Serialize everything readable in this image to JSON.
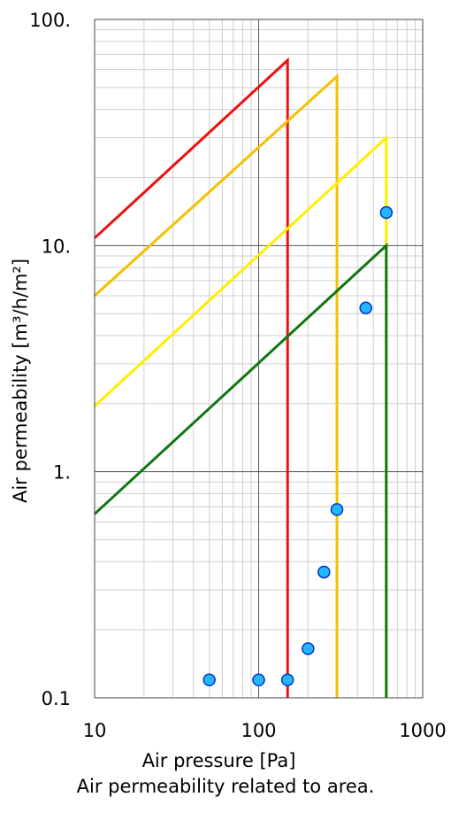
{
  "chart_data": {
    "type": "line",
    "xscale": "log",
    "yscale": "log",
    "xlim": [
      10,
      1000
    ],
    "ylim": [
      0.1,
      100
    ],
    "xlabel": "Air pressure [Pa]",
    "ylabel": "Air permeability [m³/h/m²]",
    "x_ticks": [
      {
        "value": 10,
        "label": "10"
      },
      {
        "value": 100,
        "label": "100"
      },
      {
        "value": 1000,
        "label": "1000"
      }
    ],
    "y_ticks": [
      {
        "value": 0.1,
        "label": "0.1"
      },
      {
        "value": 1,
        "label": "1."
      },
      {
        "value": 10,
        "label": "10."
      },
      {
        "value": 100,
        "label": "100."
      }
    ],
    "grid": true,
    "series": [
      {
        "color": "#ee1111",
        "x": [
          10,
          150,
          150
        ],
        "y": [
          10.8,
          66,
          0.1
        ]
      },
      {
        "color": "#f5c000",
        "x": [
          10,
          300,
          300
        ],
        "y": [
          6,
          56,
          0.1
        ]
      },
      {
        "color": "#ffee00",
        "x": [
          10,
          600,
          600
        ],
        "y": [
          1.95,
          30,
          0.1
        ]
      },
      {
        "color": "#117711",
        "x": [
          10,
          600,
          600
        ],
        "y": [
          0.65,
          10,
          0.1
        ]
      }
    ],
    "points": {
      "color": "#22b8ff",
      "edge_color": "#0033cc",
      "x": [
        50,
        100,
        150,
        200,
        250,
        300,
        450,
        600
      ],
      "y": [
        0.12,
        0.12,
        0.12,
        0.165,
        0.36,
        0.68,
        5.3,
        14
      ]
    }
  },
  "caption": "Air permeability related to area."
}
